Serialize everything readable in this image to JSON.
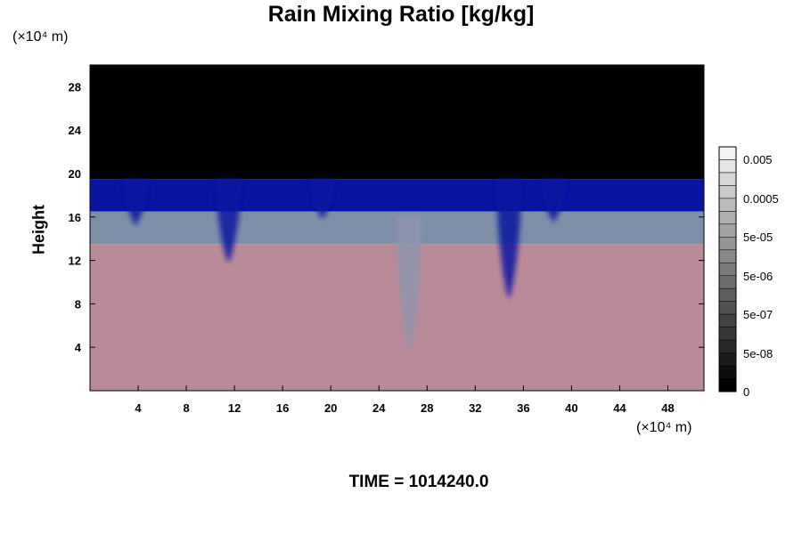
{
  "chart_data": {
    "type": "heatmap",
    "title": "Rain Mixing Ratio [kg/kg]",
    "ylabel": "Height",
    "xunit": "(×10⁴ m)",
    "yunit": "(×10⁴ m)",
    "xlim": [
      0,
      51
    ],
    "ylim": [
      0,
      30
    ],
    "xticks": [
      4,
      8,
      12,
      16,
      20,
      24,
      28,
      32,
      36,
      40,
      44,
      48
    ],
    "yticks": [
      4,
      8,
      12,
      16,
      20,
      24,
      28
    ],
    "colorbar": {
      "labels": [
        "0.005",
        "0.0005",
        "5e-05",
        "5e-06",
        "5e-07",
        "5e-08",
        "0"
      ],
      "levels": [
        "0",
        "5e-08",
        "5e-07",
        "5e-06",
        "5e-05",
        "0.0005",
        "0.005"
      ]
    },
    "bands": [
      {
        "name": "top",
        "y0": 19.5,
        "y1": 30,
        "color": "#000000"
      },
      {
        "name": "upper",
        "y0": 16.5,
        "y1": 19.5,
        "color": "#0a14a0"
      },
      {
        "name": "middle",
        "y0": 13.5,
        "y1": 16.5,
        "color": "#7d8fa6"
      },
      {
        "name": "lower",
        "y0": 0,
        "y1": 13.5,
        "color": "#b98a98"
      }
    ],
    "plumes": [
      {
        "x": 3.8,
        "y_top": 19.5,
        "y_bottom": 15.2,
        "color": "#0a14a0"
      },
      {
        "x": 11.5,
        "y_top": 19.5,
        "y_bottom": 11.8,
        "color": "#0a14a0"
      },
      {
        "x": 19.3,
        "y_top": 19.5,
        "y_bottom": 15.8,
        "color": "#0a14a0"
      },
      {
        "x": 26.5,
        "y_top": 16.0,
        "y_bottom": 3.5,
        "color": "#8e94ad"
      },
      {
        "x": 34.8,
        "y_top": 19.5,
        "y_bottom": 8.5,
        "color": "#0a14a0"
      },
      {
        "x": 38.5,
        "y_top": 19.5,
        "y_bottom": 15.5,
        "color": "#0a14a0"
      }
    ]
  },
  "footer": {
    "time_label": "TIME = 1014240.0"
  },
  "colors": {
    "frame": "#000000"
  }
}
